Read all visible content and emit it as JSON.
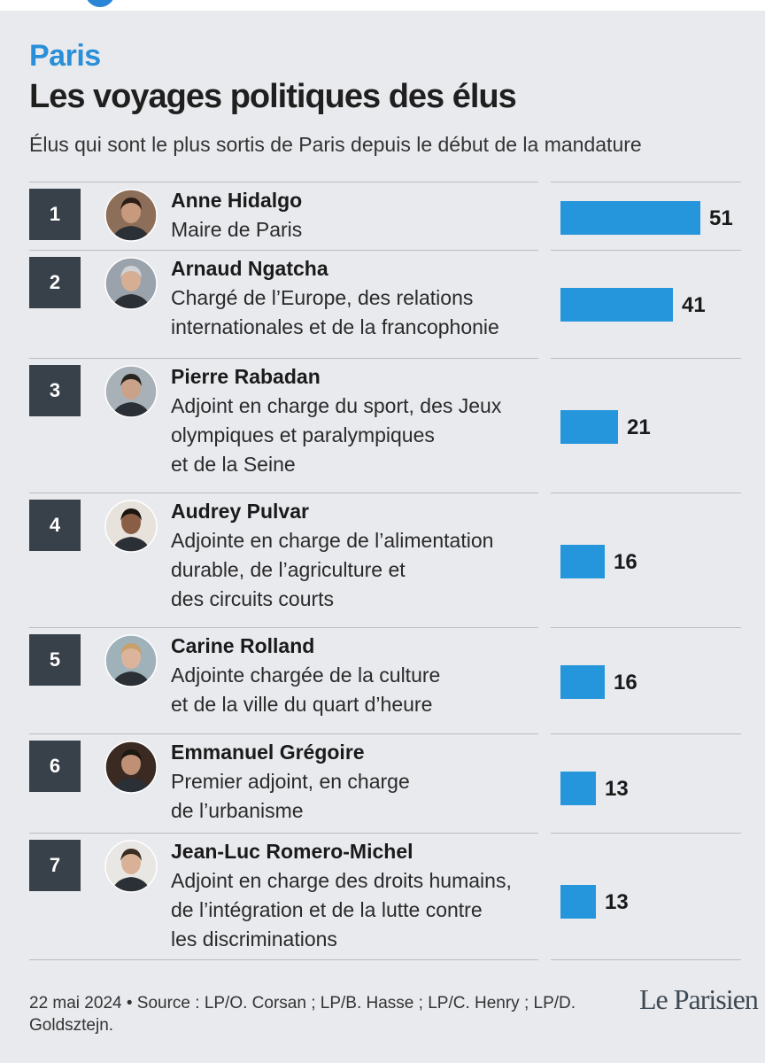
{
  "header": {
    "kicker": "Paris",
    "title": "Les voyages politiques des élus",
    "subtitle": "Élus qui sont le plus sortis de Paris depuis le début de la mandature"
  },
  "chart_data": {
    "type": "bar",
    "orientation": "horizontal",
    "title": "Les voyages politiques des élus",
    "subtitle": "Élus qui sont le plus sortis de Paris depuis le début de la mandature",
    "categories": [
      "Anne Hidalgo",
      "Arnaud Ngatcha",
      "Pierre Rabadan",
      "Audrey Pulvar",
      "Carine Rolland",
      "Emmanuel Grégoire",
      "Jean-Luc Romero-Michel"
    ],
    "values": [
      51,
      41,
      21,
      16,
      16,
      13,
      13
    ],
    "xlim": [
      0,
      51
    ],
    "colors": {
      "bar": "#2596dc",
      "rank_box": "#384149",
      "accent": "#2a8fd9"
    },
    "rows": [
      {
        "rank": "1",
        "name": "Anne Hidalgo",
        "role_lines": [
          "Maire de Paris"
        ],
        "value": 51
      },
      {
        "rank": "2",
        "name": "Arnaud Ngatcha",
        "role_lines": [
          "Chargé de l’Europe, des relations",
          "internationales et de la francophonie"
        ],
        "value": 41
      },
      {
        "rank": "3",
        "name": "Pierre Rabadan",
        "role_lines": [
          "Adjoint en charge du sport, des Jeux",
          "olympiques et paralympiques",
          "et de la Seine"
        ],
        "value": 21
      },
      {
        "rank": "4",
        "name": "Audrey Pulvar",
        "role_lines": [
          "Adjointe en charge de l’alimentation",
          "durable, de l’agriculture et",
          "des circuits courts"
        ],
        "value": 16
      },
      {
        "rank": "5",
        "name": "Carine Rolland",
        "role_lines": [
          "Adjointe chargée de la culture",
          "et de la ville du quart d’heure"
        ],
        "value": 16
      },
      {
        "rank": "6",
        "name": "Emmanuel Grégoire",
        "role_lines": [
          "Premier adjoint, en charge",
          "de l’urbanisme"
        ],
        "value": 13
      },
      {
        "rank": "7",
        "name": "Jean-Luc Romero-Michel",
        "role_lines": [
          "Adjoint en charge des droits humains,",
          "de l’intégration et de la lutte contre",
          "les discriminations"
        ],
        "value": 13
      }
    ]
  },
  "footer": {
    "source": "22 mai 2024 • Source : LP/O. Corsan ; LP/B. Hasse ; LP/C. Henry ; LP/D. Goldsztejn.",
    "logo": "Le Parisien"
  }
}
